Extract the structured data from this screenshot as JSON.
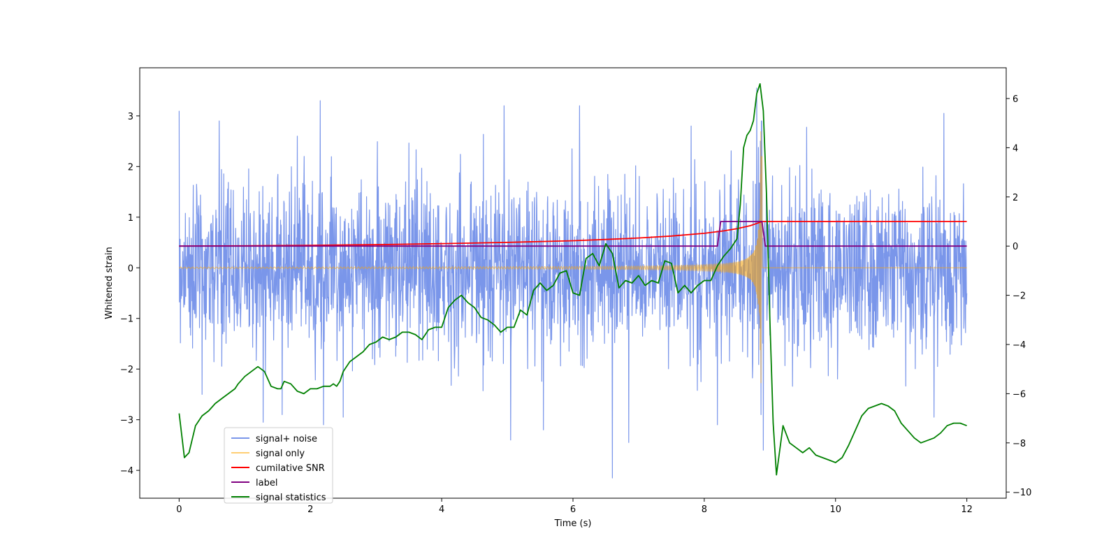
{
  "chart_data": {
    "type": "line",
    "title": "",
    "xlabel": "Time (s)",
    "ylabel": "Whitened strain",
    "ylabel_right": "",
    "xlim": [
      -0.6,
      12.6
    ],
    "ylim": [
      -4.55,
      3.95
    ],
    "ylim_right": [
      -10.25,
      7.25
    ],
    "x_ticks": [
      0,
      2,
      4,
      6,
      8,
      10,
      12
    ],
    "y_ticks": [
      -4,
      -3,
      -2,
      -1,
      0,
      1,
      2,
      3
    ],
    "y_ticks_right": [
      -10,
      -8,
      -6,
      -4,
      -2,
      0,
      2,
      4,
      6
    ],
    "grid": false,
    "legend_position": "lower-left",
    "series": [
      {
        "name": "signal+ noise",
        "axis": "left",
        "color": "#4169e1",
        "style": "noisy band",
        "band_typical": [
          -1.9,
          1.9
        ],
        "peaks": [
          {
            "x": 0.0,
            "y": 3.1
          },
          {
            "x": 0.35,
            "y": -2.5
          },
          {
            "x": 1.28,
            "y": -3.05
          },
          {
            "x": 1.8,
            "y": 2.6
          },
          {
            "x": 2.15,
            "y": 3.3
          },
          {
            "x": 2.2,
            "y": -3.1
          },
          {
            "x": 2.5,
            "y": -2.95
          },
          {
            "x": 4.95,
            "y": 3.2
          },
          {
            "x": 5.05,
            "y": -3.4
          },
          {
            "x": 5.55,
            "y": -3.2
          },
          {
            "x": 6.1,
            "y": 3.2
          },
          {
            "x": 6.6,
            "y": -4.15
          },
          {
            "x": 6.85,
            "y": -3.45
          },
          {
            "x": 7.8,
            "y": 2.8
          },
          {
            "x": 8.2,
            "y": -3.1
          },
          {
            "x": 8.8,
            "y": 3.55
          },
          {
            "x": 8.9,
            "y": -3.6
          },
          {
            "x": 11.5,
            "y": -2.95
          },
          {
            "x": 11.65,
            "y": 3.05
          }
        ]
      },
      {
        "name": "signal only",
        "axis": "left",
        "color": "#ffa500",
        "style": "chirp",
        "t_merger": 8.88,
        "peak_amplitude": 3.3,
        "post_merger_value": 0.0
      },
      {
        "name": "cumilative SNR",
        "axis": "right",
        "color": "#ff0000",
        "x": [
          0,
          1,
          2,
          3,
          4,
          5,
          6,
          6.5,
          7,
          7.5,
          8,
          8.3,
          8.5,
          8.7,
          8.8,
          8.88,
          9,
          10,
          11,
          12
        ],
        "y": [
          0.0,
          0.01,
          0.03,
          0.06,
          0.1,
          0.15,
          0.22,
          0.27,
          0.33,
          0.41,
          0.52,
          0.62,
          0.71,
          0.83,
          0.92,
          1.0,
          1.0,
          1.0,
          1.0,
          1.0
        ]
      },
      {
        "name": "label",
        "axis": "right",
        "color": "#800080",
        "x": [
          0,
          8.2,
          8.25,
          8.88,
          8.93,
          12
        ],
        "y": [
          0,
          0,
          1,
          1,
          0,
          0
        ]
      },
      {
        "name": "signal statistics",
        "axis": "right",
        "color": "#008000",
        "x": [
          0,
          0.08,
          0.15,
          0.25,
          0.35,
          0.45,
          0.55,
          0.65,
          0.75,
          0.8,
          0.85,
          0.9,
          1.0,
          1.1,
          1.15,
          1.2,
          1.25,
          1.3,
          1.4,
          1.5,
          1.55,
          1.6,
          1.7,
          1.8,
          1.9,
          2.0,
          2.1,
          2.2,
          2.3,
          2.35,
          2.4,
          2.45,
          2.5,
          2.6,
          2.7,
          2.8,
          2.9,
          3.0,
          3.1,
          3.2,
          3.3,
          3.4,
          3.5,
          3.6,
          3.7,
          3.8,
          3.9,
          4.0,
          4.1,
          4.2,
          4.3,
          4.4,
          4.5,
          4.6,
          4.7,
          4.8,
          4.9,
          5.0,
          5.1,
          5.2,
          5.3,
          5.4,
          5.5,
          5.6,
          5.7,
          5.8,
          5.9,
          6.0,
          6.1,
          6.2,
          6.3,
          6.4,
          6.5,
          6.6,
          6.7,
          6.8,
          6.9,
          7.0,
          7.1,
          7.2,
          7.3,
          7.4,
          7.5,
          7.6,
          7.7,
          7.8,
          7.9,
          8.0,
          8.1,
          8.2,
          8.3,
          8.4,
          8.5,
          8.55,
          8.6,
          8.65,
          8.7,
          8.75,
          8.8,
          8.85,
          8.9,
          8.95,
          9.0,
          9.05,
          9.1,
          9.2,
          9.3,
          9.4,
          9.5,
          9.6,
          9.7,
          9.8,
          9.9,
          10.0,
          10.1,
          10.2,
          10.3,
          10.4,
          10.5,
          10.6,
          10.7,
          10.8,
          10.9,
          11.0,
          11.1,
          11.2,
          11.3,
          11.4,
          11.5,
          11.6,
          11.7,
          11.8,
          11.9,
          12.0
        ],
        "y": [
          -6.8,
          -8.6,
          -8.4,
          -7.3,
          -6.9,
          -6.7,
          -6.4,
          -6.2,
          -6.0,
          -5.9,
          -5.8,
          -5.6,
          -5.3,
          -5.1,
          -5.0,
          -4.9,
          -5.0,
          -5.1,
          -5.7,
          -5.8,
          -5.8,
          -5.5,
          -5.6,
          -5.9,
          -6.0,
          -5.8,
          -5.8,
          -5.7,
          -5.7,
          -5.6,
          -5.7,
          -5.5,
          -5.1,
          -4.7,
          -4.5,
          -4.3,
          -4.0,
          -3.9,
          -3.7,
          -3.8,
          -3.7,
          -3.5,
          -3.5,
          -3.6,
          -3.8,
          -3.4,
          -3.3,
          -3.3,
          -2.5,
          -2.2,
          -2.0,
          -2.3,
          -2.5,
          -2.9,
          -3.0,
          -3.2,
          -3.5,
          -3.3,
          -3.3,
          -2.6,
          -2.8,
          -1.8,
          -1.5,
          -1.8,
          -1.6,
          -1.1,
          -1.0,
          -1.9,
          -2.0,
          -0.5,
          -0.3,
          -0.8,
          0.1,
          -0.3,
          -1.7,
          -1.4,
          -1.5,
          -1.2,
          -1.6,
          -1.4,
          -1.5,
          -0.6,
          -0.7,
          -1.9,
          -1.6,
          -1.9,
          -1.6,
          -1.4,
          -1.4,
          -0.8,
          -0.4,
          -0.1,
          0.3,
          1.7,
          4.0,
          4.5,
          4.7,
          5.1,
          6.2,
          6.6,
          5.5,
          2.0,
          -3.0,
          -7.2,
          -9.3,
          -7.3,
          -8.0,
          -8.2,
          -8.4,
          -8.2,
          -8.5,
          -8.6,
          -8.7,
          -8.8,
          -8.6,
          -8.1,
          -7.5,
          -6.9,
          -6.6,
          -6.5,
          -6.4,
          -6.5,
          -6.7,
          -7.2,
          -7.5,
          -7.8,
          -8.0,
          -7.9,
          -7.8,
          -7.6,
          -7.3,
          -7.2,
          -7.2,
          -7.3
        ]
      }
    ]
  }
}
